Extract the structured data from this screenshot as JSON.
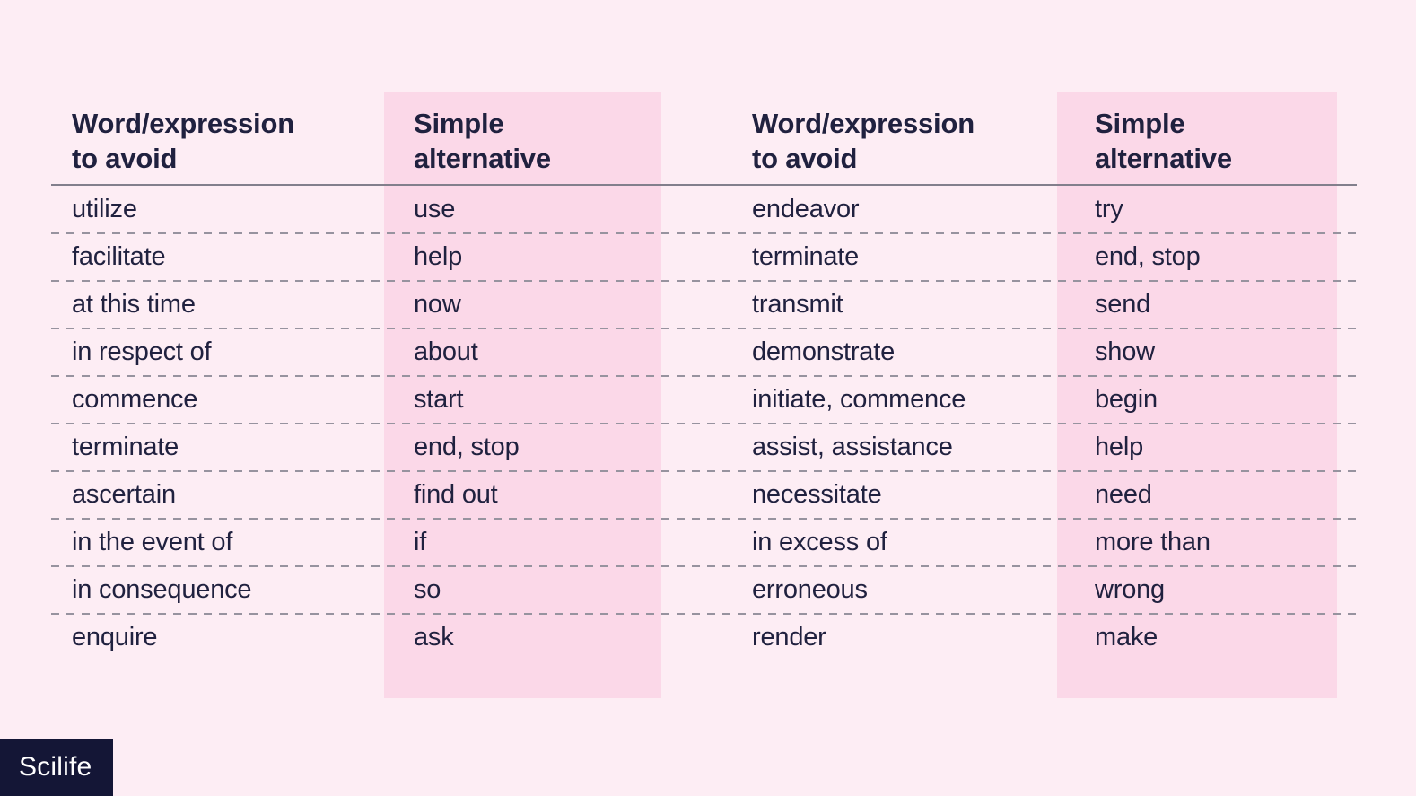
{
  "colors": {
    "background": "#fdedf4",
    "column_highlight": "#fbd8e8",
    "text": "#20213f",
    "header_rule": "#827f8c",
    "row_divider": "#97939f",
    "logo_background": "#141636",
    "logo_text_color": "#ffffff"
  },
  "brand": {
    "logo_text": "Scilife"
  },
  "table": {
    "header_avoid": {
      "line1": "Word/expression",
      "line2": "to avoid"
    },
    "header_simple": {
      "line1": "Simple",
      "line2": "alternative"
    },
    "rows": [
      {
        "avoid_left": "utilize",
        "simple_left": "use",
        "avoid_right": "endeavor",
        "simple_right": "try"
      },
      {
        "avoid_left": "facilitate",
        "simple_left": "help",
        "avoid_right": "terminate",
        "simple_right": "end, stop"
      },
      {
        "avoid_left": "at this time",
        "simple_left": "now",
        "avoid_right": "transmit",
        "simple_right": "send"
      },
      {
        "avoid_left": "in respect of",
        "simple_left": "about",
        "avoid_right": "demonstrate",
        "simple_right": "show"
      },
      {
        "avoid_left": "commence",
        "simple_left": "start",
        "avoid_right": "initiate, commence",
        "simple_right": "begin"
      },
      {
        "avoid_left": "terminate",
        "simple_left": "end, stop",
        "avoid_right": "assist, assistance",
        "simple_right": "help"
      },
      {
        "avoid_left": "ascertain",
        "simple_left": "find out",
        "avoid_right": "necessitate",
        "simple_right": "need"
      },
      {
        "avoid_left": "in the event of",
        "simple_left": "if",
        "avoid_right": "in excess of",
        "simple_right": "more than"
      },
      {
        "avoid_left": "in consequence",
        "simple_left": "so",
        "avoid_right": "erroneous",
        "simple_right": "wrong"
      },
      {
        "avoid_left": "enquire",
        "simple_left": "ask",
        "avoid_right": "render",
        "simple_right": "make"
      }
    ]
  }
}
